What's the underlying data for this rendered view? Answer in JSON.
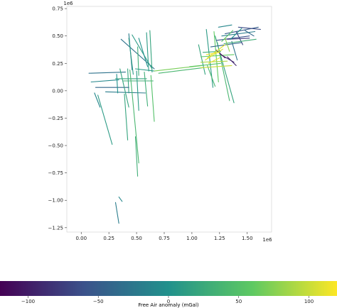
{
  "chart_data": {
    "type": "scatter",
    "title": "",
    "xlabel": "",
    "ylabel": "",
    "x_offset_label": "1e6",
    "y_offset_label": "1e6",
    "xlim": [
      -0.13,
      1.72
    ],
    "ylim": [
      -1.29,
      0.77
    ],
    "x_ticks": [
      0.0,
      0.25,
      0.5,
      0.75,
      1.0,
      1.25,
      1.5
    ],
    "x_tick_labels": [
      "0.00",
      "0.25",
      "0.50",
      "0.75",
      "1.00",
      "1.25",
      "1.50"
    ],
    "y_ticks": [
      0.75,
      0.5,
      0.25,
      0.0,
      -0.25,
      -0.5,
      -0.75,
      -1.0,
      -1.25
    ],
    "y_tick_labels": [
      "0.75",
      "0.50",
      "0.25",
      "0.00",
      "−0.25",
      "−0.50",
      "−0.75",
      "−1.00",
      "−1.25"
    ],
    "grid": false,
    "colormap": "viridis",
    "colormap_stops": [
      "#440154",
      "#3b528b",
      "#21918c",
      "#5ec962",
      "#fde725"
    ],
    "colorbar": {
      "label": "Free Air anomaly (mGal)",
      "vmin": -120,
      "vmax": 120,
      "ticks": [
        -100,
        -50,
        0,
        50,
        100
      ],
      "tick_labels": [
        "−100",
        "−50",
        "0",
        "50",
        "100"
      ]
    },
    "survey_lines": [
      {
        "x": [
          0.36,
          0.66
        ],
        "y": [
          0.47,
          0.2
        ],
        "value": -30
      },
      {
        "x": [
          0.46,
          0.64
        ],
        "y": [
          0.51,
          0.2
        ],
        "value": 10
      },
      {
        "x": [
          0.43,
          0.46
        ],
        "y": [
          0.52,
          0.19
        ],
        "value": -20
      },
      {
        "x": [
          0.43,
          0.47
        ],
        "y": [
          0.48,
          0.15
        ],
        "value": 10
      },
      {
        "x": [
          0.51,
          0.52
        ],
        "y": [
          0.4,
          0.14
        ],
        "value": 30
      },
      {
        "x": [
          0.52,
          0.6
        ],
        "y": [
          0.48,
          0.22
        ],
        "value": 0
      },
      {
        "x": [
          0.62,
          0.64
        ],
        "y": [
          0.55,
          0.17
        ],
        "value": 20
      },
      {
        "x": [
          0.59,
          0.61
        ],
        "y": [
          0.53,
          0.18
        ],
        "value": 10
      },
      {
        "x": [
          0.42,
          0.43
        ],
        "y": [
          0.2,
          -0.02
        ],
        "value": 20
      },
      {
        "x": [
          0.49,
          0.66
        ],
        "y": [
          0.2,
          0.18
        ],
        "value": 10
      },
      {
        "x": [
          0.07,
          0.4
        ],
        "y": [
          0.16,
          0.17
        ],
        "value": -30
      },
      {
        "x": [
          0.09,
          0.34
        ],
        "y": [
          0.08,
          0.1
        ],
        "value": -10
      },
      {
        "x": [
          0.13,
          0.43
        ],
        "y": [
          0.03,
          0.03
        ],
        "value": -40
      },
      {
        "x": [
          0.22,
          0.58
        ],
        "y": [
          -0.01,
          -0.02
        ],
        "value": -20
      },
      {
        "x": [
          0.31,
          0.59
        ],
        "y": [
          0.11,
          0.11
        ],
        "value": 20
      },
      {
        "x": [
          0.38,
          0.65
        ],
        "y": [
          0.09,
          0.09
        ],
        "value": 30
      },
      {
        "x": [
          0.32,
          0.33
        ],
        "y": [
          0.15,
          -0.02
        ],
        "value": 0
      },
      {
        "x": [
          0.35,
          0.43
        ],
        "y": [
          0.2,
          -0.15
        ],
        "value": 20
      },
      {
        "x": [
          0.44,
          0.52
        ],
        "y": [
          0.19,
          -0.66
        ],
        "value": 40
      },
      {
        "x": [
          0.5,
          0.52
        ],
        "y": [
          0.18,
          -0.18
        ],
        "value": 10
      },
      {
        "x": [
          0.57,
          0.6
        ],
        "y": [
          0.17,
          -0.14
        ],
        "value": 30
      },
      {
        "x": [
          0.63,
          0.66
        ],
        "y": [
          0.14,
          -0.28
        ],
        "value": 50
      },
      {
        "x": [
          0.15,
          0.28
        ],
        "y": [
          -0.04,
          -0.49
        ],
        "value": 10
      },
      {
        "x": [
          0.12,
          0.17
        ],
        "y": [
          -0.02,
          -0.15
        ],
        "value": -10
      },
      {
        "x": [
          0.39,
          0.42
        ],
        "y": [
          -0.03,
          -0.45
        ],
        "value": 20
      },
      {
        "x": [
          0.49,
          0.51
        ],
        "y": [
          -0.42,
          -0.78
        ],
        "value": 30
      },
      {
        "x": [
          0.34,
          0.37
        ],
        "y": [
          -0.97,
          -1.01
        ],
        "value": -10
      },
      {
        "x": [
          0.31,
          0.34
        ],
        "y": [
          -1.02,
          -1.21
        ],
        "value": -20
      },
      {
        "x": [
          0.66,
          1.09
        ],
        "y": [
          0.18,
          0.23
        ],
        "value": 70
      },
      {
        "x": [
          0.7,
          1.1
        ],
        "y": [
          0.16,
          0.21
        ],
        "value": 40
      },
      {
        "x": [
          0.98,
          1.26
        ],
        "y": [
          0.22,
          0.25
        ],
        "value": 60
      },
      {
        "x": [
          1.06,
          1.12
        ],
        "y": [
          0.42,
          0.15
        ],
        "value": 20
      },
      {
        "x": [
          1.13,
          1.19
        ],
        "y": [
          0.56,
          0.03
        ],
        "value": 10
      },
      {
        "x": [
          1.2,
          1.24
        ],
        "y": [
          0.54,
          0.08
        ],
        "value": 60
      },
      {
        "x": [
          1.23,
          1.34
        ],
        "y": [
          0.44,
          -0.09
        ],
        "value": 40
      },
      {
        "x": [
          1.21,
          1.38
        ],
        "y": [
          0.5,
          -0.11
        ],
        "value": 20
      },
      {
        "x": [
          1.14,
          1.21
        ],
        "y": [
          0.23,
          0.04
        ],
        "value": 40
      },
      {
        "x": [
          1.08,
          1.32
        ],
        "y": [
          0.26,
          0.27
        ],
        "value": 90
      },
      {
        "x": [
          1.08,
          1.38
        ],
        "y": [
          0.31,
          0.33
        ],
        "value": 60
      },
      {
        "x": [
          1.08,
          1.36
        ],
        "y": [
          0.21,
          0.23
        ],
        "value": 100
      },
      {
        "x": [
          1.1,
          1.26
        ],
        "y": [
          0.35,
          0.36
        ],
        "value": 30
      },
      {
        "x": [
          1.17,
          1.45
        ],
        "y": [
          0.4,
          0.44
        ],
        "value": -40
      },
      {
        "x": [
          1.22,
          1.52
        ],
        "y": [
          0.46,
          0.5
        ],
        "value": -60
      },
      {
        "x": [
          1.27,
          1.57
        ],
        "y": [
          0.5,
          0.54
        ],
        "value": -20
      },
      {
        "x": [
          1.3,
          1.6
        ],
        "y": [
          0.52,
          0.58
        ],
        "value": -50
      },
      {
        "x": [
          1.32,
          1.52
        ],
        "y": [
          0.47,
          0.48
        ],
        "value": -80
      },
      {
        "x": [
          1.24,
          1.36
        ],
        "y": [
          0.58,
          0.6
        ],
        "value": -10
      },
      {
        "x": [
          1.26,
          1.38
        ],
        "y": [
          0.33,
          0.26
        ],
        "value": -90
      },
      {
        "x": [
          1.22,
          1.3
        ],
        "y": [
          0.37,
          0.3
        ],
        "value": -110
      },
      {
        "x": [
          1.32,
          1.4
        ],
        "y": [
          0.31,
          0.23
        ],
        "value": -95
      },
      {
        "x": [
          1.14,
          1.3
        ],
        "y": [
          0.3,
          0.42
        ],
        "value": 110
      },
      {
        "x": [
          1.12,
          1.28
        ],
        "y": [
          0.28,
          0.38
        ],
        "value": 105
      },
      {
        "x": [
          1.13,
          1.25
        ],
        "y": [
          0.33,
          0.35
        ],
        "value": 115
      },
      {
        "x": [
          1.15,
          1.25
        ],
        "y": [
          0.25,
          0.3
        ],
        "value": 110
      },
      {
        "x": [
          1.27,
          1.37
        ],
        "y": [
          0.45,
          0.55
        ],
        "value": 50
      },
      {
        "x": [
          1.35,
          1.45
        ],
        "y": [
          0.47,
          0.57
        ],
        "value": 0
      },
      {
        "x": [
          1.36,
          1.41
        ],
        "y": [
          0.45,
          0.28
        ],
        "value": -30
      },
      {
        "x": [
          1.4,
          1.46
        ],
        "y": [
          0.54,
          0.42
        ],
        "value": -70
      },
      {
        "x": [
          1.3,
          1.34
        ],
        "y": [
          0.48,
          0.36
        ],
        "value": 80
      },
      {
        "x": [
          1.48,
          1.56
        ],
        "y": [
          0.55,
          0.5
        ],
        "value": -40
      },
      {
        "x": [
          1.29,
          1.58
        ],
        "y": [
          0.43,
          0.47
        ],
        "value": 30
      },
      {
        "x": [
          1.42,
          1.62
        ],
        "y": [
          0.58,
          0.56
        ],
        "value": -65
      }
    ]
  }
}
